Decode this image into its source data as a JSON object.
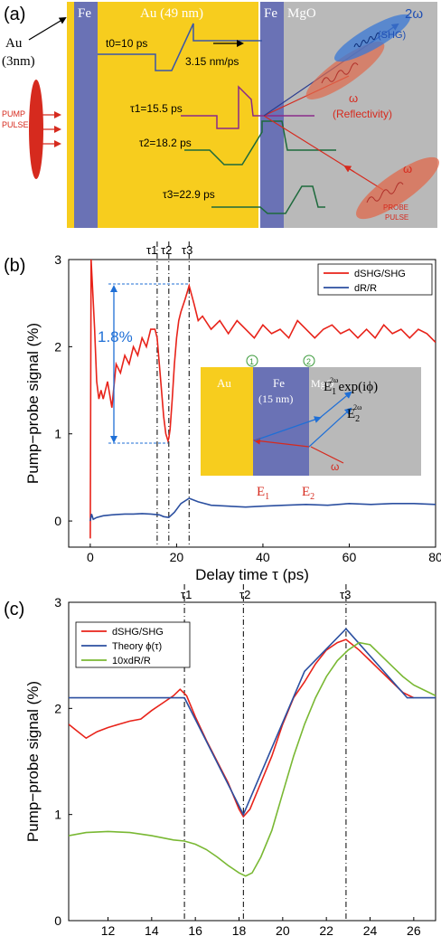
{
  "panel_a": {
    "label": "(a)",
    "layer_fe1": "Fe",
    "layer_au": "Au (49 nm)",
    "layer_fe2": "Fe",
    "layer_mgo": "MgO",
    "au_cap": "Au",
    "au_cap_thickness": "(3nm)",
    "pump_line1": "PUMP",
    "pump_line2": "PULSE",
    "t0_label": "t0=10 ps",
    "velocity_label": "3.15 nm/ps",
    "tau1_label": "τ1=15.5 ps",
    "tau2_label": "τ2=18.2 ps",
    "tau3_label": "τ3=22.9 ps",
    "shg_omega": "2ω",
    "shg_label": "(SHG)",
    "refl_omega": "ω",
    "refl_label": "(Reflectivity)",
    "probe_omega": "ω",
    "probe_line1": "PROBE",
    "probe_line2": "PULSE",
    "colors": {
      "au": "#f7cd1e",
      "fe": "#6a72b5",
      "mgo": "#b9b9b9",
      "pump": "#d62a1e",
      "shg": "#3a78d6",
      "refl": "#e06a4c"
    }
  },
  "panel_b": {
    "label": "(b)",
    "top_labels": [
      "τ1",
      "τ2",
      "τ3"
    ],
    "amplitude_label": "1.8%",
    "inset": {
      "au": "Au",
      "fe": "Fe",
      "fe_thickness": "(15 nm)",
      "mgo": "MgO",
      "marker1": "1",
      "marker2": "2",
      "e1_label": "E",
      "e1_sub": "1",
      "e2_label": "E",
      "e2_sub": "2",
      "field1": "E",
      "field1_sub": "1",
      "field1_sup": "2ω",
      "field1_phase": "exp(iϕ)",
      "field2": "E",
      "field2_sub": "2",
      "field2_sup": "2ω",
      "omega": "ω"
    }
  },
  "panel_c": {
    "label": "(c)",
    "top_labels": [
      "τ1",
      "τ2",
      "τ3"
    ]
  },
  "chart_data": [
    {
      "type": "line",
      "panel": "b",
      "xlabel": "Delay time τ (ps)",
      "ylabel": "Pump−probe signal (%)",
      "xlim": [
        -5,
        80
      ],
      "ylim": [
        -0.3,
        3
      ],
      "xticks": [
        0,
        20,
        40,
        60,
        80
      ],
      "yticks": [
        0,
        1,
        2,
        3
      ],
      "legend_position": "top-right",
      "vlines": [
        15.5,
        18.2,
        22.9
      ],
      "series": [
        {
          "name": "dSHG/SHG",
          "color": "#e8231a",
          "x": [
            0,
            0.2,
            0.5,
            1,
            1.5,
            2,
            2.5,
            3,
            4,
            5,
            6,
            7,
            8,
            9,
            10,
            11,
            12,
            13,
            14,
            15,
            15.5,
            16,
            16.5,
            17,
            17.5,
            18,
            18.2,
            18.5,
            19,
            19.5,
            20,
            20.5,
            21,
            22,
            22.9,
            24,
            25,
            26,
            28,
            30,
            32,
            34,
            36,
            38,
            40,
            42,
            44,
            46,
            48,
            50,
            52,
            54,
            56,
            58,
            60,
            62,
            64,
            66,
            68,
            70,
            72,
            74,
            76,
            78,
            80
          ],
          "values": [
            -0.2,
            3.0,
            2.7,
            2.2,
            1.6,
            1.4,
            1.5,
            1.4,
            1.6,
            1.3,
            1.8,
            1.7,
            1.9,
            1.8,
            2.0,
            1.9,
            2.1,
            2.0,
            2.2,
            2.2,
            2.1,
            1.8,
            1.5,
            1.2,
            1.0,
            0.92,
            0.95,
            1.05,
            1.4,
            1.8,
            2.1,
            2.3,
            2.4,
            2.55,
            2.7,
            2.5,
            2.3,
            2.35,
            2.2,
            2.3,
            2.15,
            2.3,
            2.2,
            2.1,
            2.25,
            2.15,
            2.2,
            2.1,
            2.3,
            2.2,
            2.1,
            2.2,
            2.25,
            2.15,
            2.2,
            2.1,
            2.2,
            2.1,
            2.25,
            2.15,
            2.2,
            2.1,
            2.2,
            2.15,
            2.05
          ]
        },
        {
          "name": "dR/R",
          "color": "#2b4fa0",
          "x": [
            0,
            0.3,
            0.7,
            1.5,
            3,
            5,
            8,
            10,
            12,
            14,
            16,
            17,
            18.2,
            19.5,
            21,
            22.9,
            25,
            28,
            32,
            36,
            40,
            45,
            50,
            55,
            60,
            65,
            70,
            75,
            80
          ],
          "values": [
            0.0,
            0.08,
            0.02,
            0.04,
            0.06,
            0.07,
            0.08,
            0.08,
            0.085,
            0.08,
            0.07,
            0.05,
            0.04,
            0.1,
            0.2,
            0.26,
            0.22,
            0.18,
            0.17,
            0.16,
            0.17,
            0.18,
            0.19,
            0.18,
            0.2,
            0.19,
            0.2,
            0.2,
            0.19
          ]
        }
      ]
    },
    {
      "type": "line",
      "panel": "c",
      "xlabel": "Delay time τ (ps)",
      "ylabel": "Pump−probe signal (%)",
      "xlim": [
        10.2,
        27
      ],
      "ylim": [
        0,
        3
      ],
      "xticks": [
        12,
        14,
        16,
        18,
        20,
        22,
        24,
        26
      ],
      "yticks": [
        0,
        1,
        2,
        3
      ],
      "legend_position": "top-left",
      "vlines": [
        15.5,
        18.2,
        22.9
      ],
      "series": [
        {
          "name": "dSHG/SHG",
          "color": "#e8231a",
          "x": [
            10.2,
            10.5,
            11,
            11.5,
            12,
            12.5,
            13,
            13.5,
            14,
            14.5,
            15,
            15.3,
            15.6,
            16,
            16.5,
            17,
            17.5,
            18,
            18.2,
            18.5,
            19,
            19.5,
            20,
            20.5,
            21,
            21.5,
            22,
            22.5,
            22.9,
            23.5,
            24,
            24.5,
            25,
            25.5,
            26
          ],
          "values": [
            1.85,
            1.8,
            1.72,
            1.78,
            1.82,
            1.85,
            1.88,
            1.9,
            1.98,
            2.05,
            2.12,
            2.18,
            2.12,
            1.92,
            1.7,
            1.5,
            1.3,
            1.05,
            0.98,
            1.05,
            1.3,
            1.55,
            1.85,
            2.1,
            2.25,
            2.42,
            2.55,
            2.62,
            2.65,
            2.55,
            2.45,
            2.35,
            2.25,
            2.15,
            2.1
          ]
        },
        {
          "name": "Theory ϕ(τ)",
          "color": "#2b4fa0",
          "x": [
            10.2,
            15.5,
            18.2,
            21,
            22.9,
            25.7,
            27
          ],
          "values": [
            2.1,
            2.1,
            1.0,
            2.35,
            2.75,
            2.1,
            2.1
          ]
        },
        {
          "name": "10xdR/R",
          "color": "#79b833",
          "x": [
            10.2,
            11,
            12,
            13,
            14,
            15,
            15.5,
            16,
            16.5,
            17,
            17.5,
            18,
            18.3,
            18.6,
            19,
            19.5,
            20,
            20.5,
            21,
            21.5,
            22,
            22.5,
            23,
            23.5,
            24,
            24.5,
            25,
            25.5,
            26,
            26.5,
            27
          ],
          "values": [
            0.8,
            0.83,
            0.84,
            0.83,
            0.8,
            0.76,
            0.75,
            0.72,
            0.67,
            0.6,
            0.52,
            0.45,
            0.42,
            0.45,
            0.6,
            0.85,
            1.2,
            1.55,
            1.85,
            2.1,
            2.3,
            2.45,
            2.55,
            2.62,
            2.6,
            2.5,
            2.4,
            2.3,
            2.22,
            2.17,
            2.12
          ]
        }
      ]
    }
  ]
}
